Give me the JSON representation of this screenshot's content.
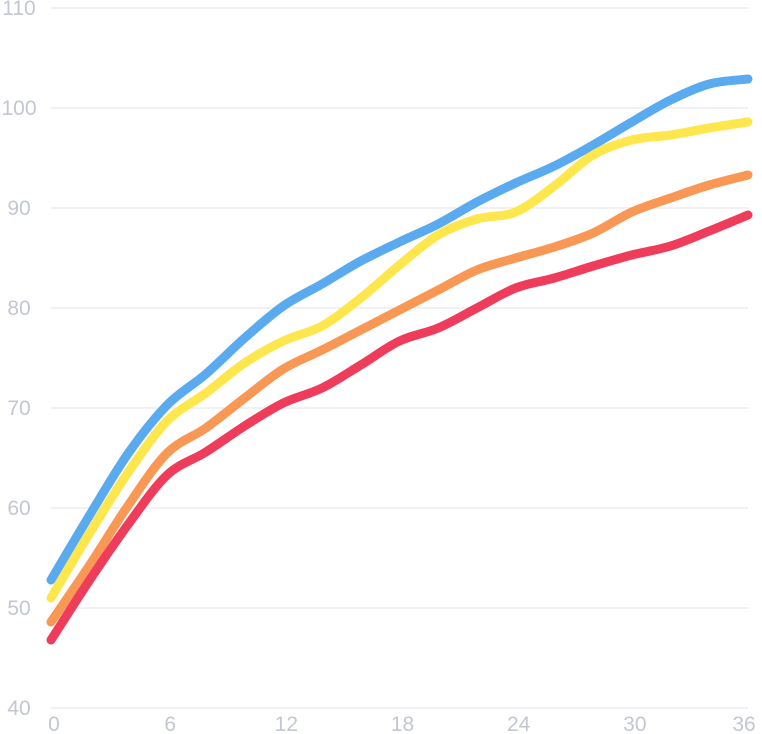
{
  "chart_data": {
    "type": "line",
    "title": "",
    "xlabel": "",
    "ylabel": "",
    "x": [
      0,
      2,
      4,
      6,
      8,
      10,
      12,
      14,
      16,
      18,
      20,
      22,
      24,
      26,
      28,
      30,
      32,
      34,
      36
    ],
    "xticks": [
      "0",
      "6",
      "12",
      "18",
      "24",
      "30",
      "36"
    ],
    "xlim": [
      0,
      36
    ],
    "yticks": [
      "40",
      "50",
      "60",
      "70",
      "80",
      "90",
      "100",
      "110"
    ],
    "ylim": [
      40,
      110
    ],
    "grid": true,
    "series": [
      {
        "color": "#5aaaf0",
        "values": [
          52.8,
          59.3,
          65.5,
          70.3,
          73.4,
          77.0,
          80.2,
          82.4,
          84.7,
          86.6,
          88.4,
          90.6,
          92.5,
          94.2,
          96.3,
          98.6,
          100.8,
          102.4,
          102.9
        ]
      },
      {
        "color": "#fde74c",
        "values": [
          51.0,
          57.5,
          63.6,
          68.7,
          71.5,
          74.5,
          76.7,
          78.2,
          81.0,
          84.3,
          87.3,
          88.9,
          89.6,
          92.2,
          95.3,
          96.8,
          97.3,
          98.0,
          98.6
        ]
      },
      {
        "color": "#f99755",
        "values": [
          48.6,
          54.3,
          60.3,
          65.5,
          68.0,
          71.0,
          73.9,
          75.8,
          77.8,
          79.8,
          81.8,
          83.8,
          85.0,
          86.1,
          87.5,
          89.6,
          91.0,
          92.3,
          93.3
        ]
      },
      {
        "color": "#ef3c5a",
        "values": [
          46.8,
          52.8,
          58.4,
          63.3,
          65.6,
          68.2,
          70.5,
          72.0,
          74.3,
          76.7,
          78.0,
          80.0,
          82.0,
          83.0,
          84.2,
          85.3,
          86.2,
          87.7,
          89.3
        ]
      }
    ]
  }
}
